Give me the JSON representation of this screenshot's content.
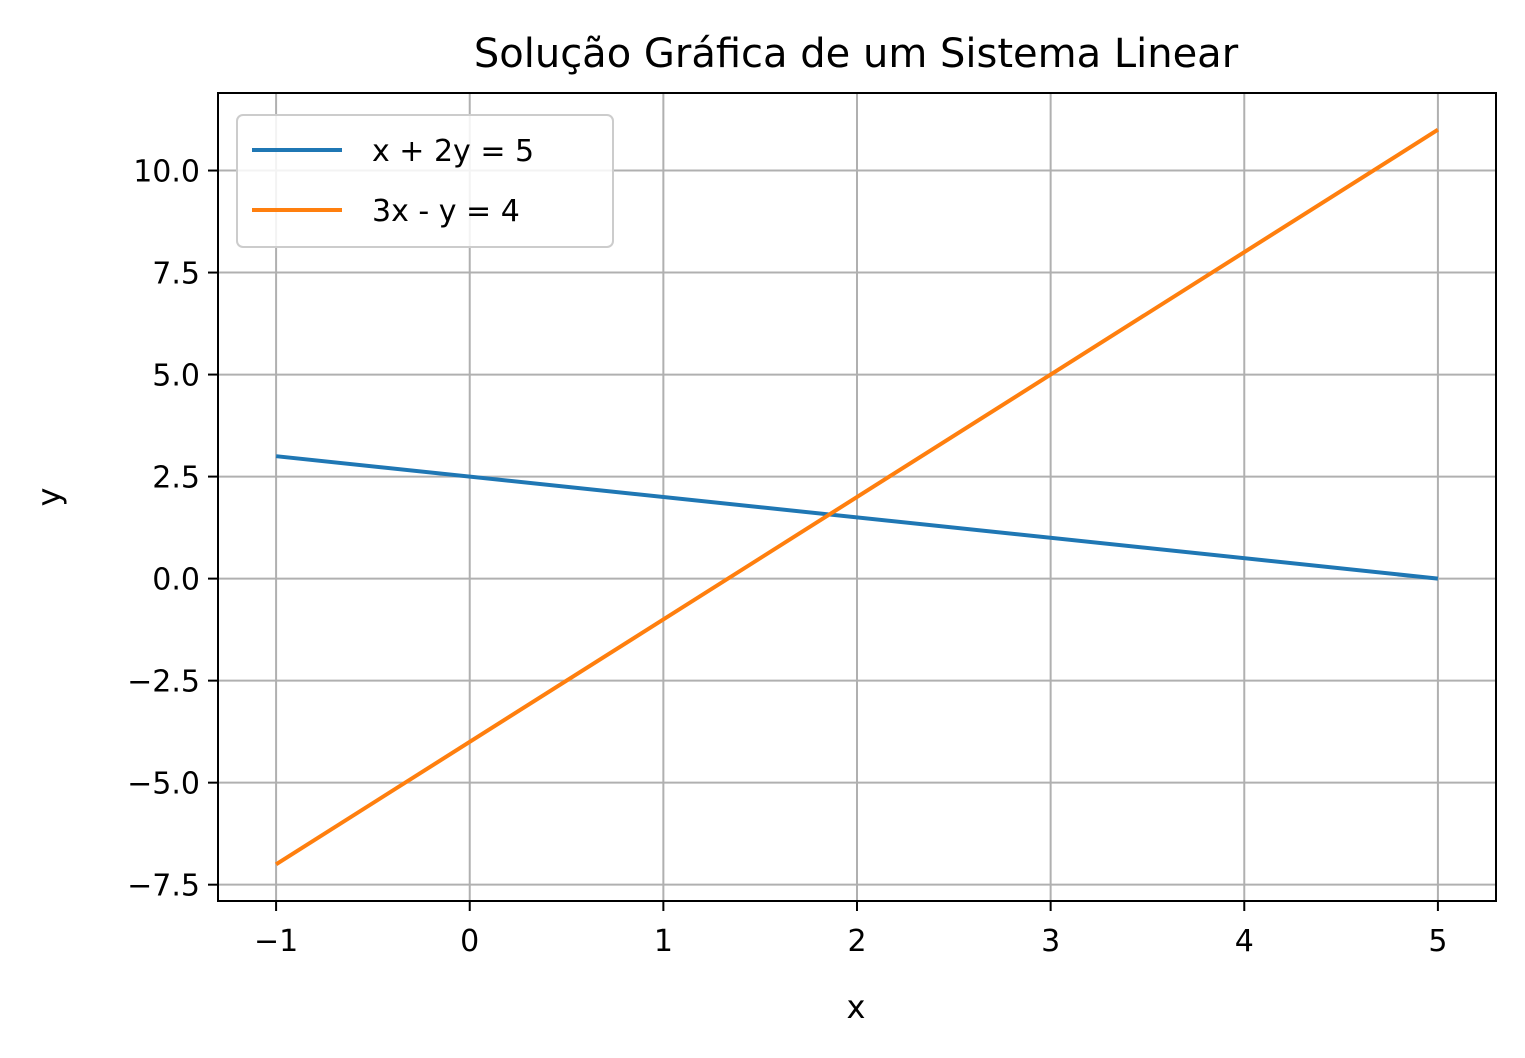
{
  "chart_data": {
    "type": "line",
    "title": "Solução Gráfica de um Sistema Linear",
    "xlabel": "x",
    "ylabel": "y",
    "xlim": [
      -1.3,
      5.3
    ],
    "ylim": [
      -7.9,
      11.9
    ],
    "grid": true,
    "legend_position": "top-left",
    "x_ticks": [
      -1,
      0,
      1,
      2,
      3,
      4,
      5
    ],
    "x_tick_labels": [
      "−1",
      "0",
      "1",
      "2",
      "3",
      "4",
      "5"
    ],
    "y_ticks": [
      -7.5,
      -5.0,
      -2.5,
      0.0,
      2.5,
      5.0,
      7.5,
      10.0
    ],
    "y_tick_labels": [
      "−7.5",
      "−5.0",
      "−2.5",
      "0.0",
      "2.5",
      "5.0",
      "7.5",
      "10.0"
    ],
    "series": [
      {
        "name": "x + 2y = 5",
        "color": "#1f77b4",
        "x": [
          -1,
          5
        ],
        "y": [
          3.0,
          0.0
        ]
      },
      {
        "name": "3x - y = 4",
        "color": "#ff7f0e",
        "x": [
          -1,
          5
        ],
        "y": [
          -7.0,
          11.0
        ]
      }
    ]
  }
}
